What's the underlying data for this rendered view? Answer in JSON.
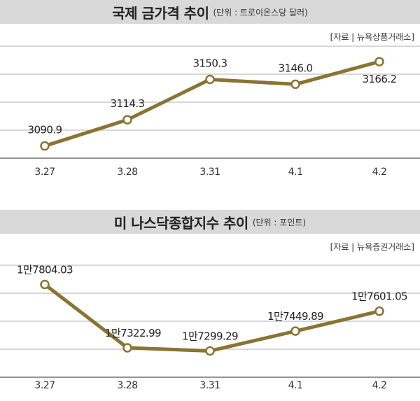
{
  "chart_data": [
    {
      "type": "line",
      "title": "국제 금가격 추이",
      "unit": "(단위 : 트로이온스당 달러)",
      "source": "[자료 | 뉴욕상품거래소]",
      "categories": [
        "3.27",
        "3.28",
        "3.31",
        "4.1",
        "4.2"
      ],
      "values": [
        3090.9,
        3114.3,
        3150.3,
        3146.0,
        3166.2
      ],
      "value_labels": [
        "3090.9",
        "3114.3",
        "3150.3",
        "3146.0",
        "3166.2"
      ],
      "line_color": "#8a7432",
      "grid": true
    },
    {
      "type": "line",
      "title": "미 나스닥종합지수 추이",
      "unit": "(단위 : 포인트)",
      "source": "[자료 | 뉴욕증권거래소]",
      "categories": [
        "3.27",
        "3.28",
        "3.31",
        "4.1",
        "4.2"
      ],
      "values": [
        17804.03,
        17322.99,
        17299.29,
        17449.89,
        17601.05
      ],
      "value_labels": [
        "1만7804.03",
        "1만7322.99",
        "1만7299.29",
        "1만7449.89",
        "1만7601.05"
      ],
      "line_color": "#8a7432",
      "grid": true
    }
  ]
}
